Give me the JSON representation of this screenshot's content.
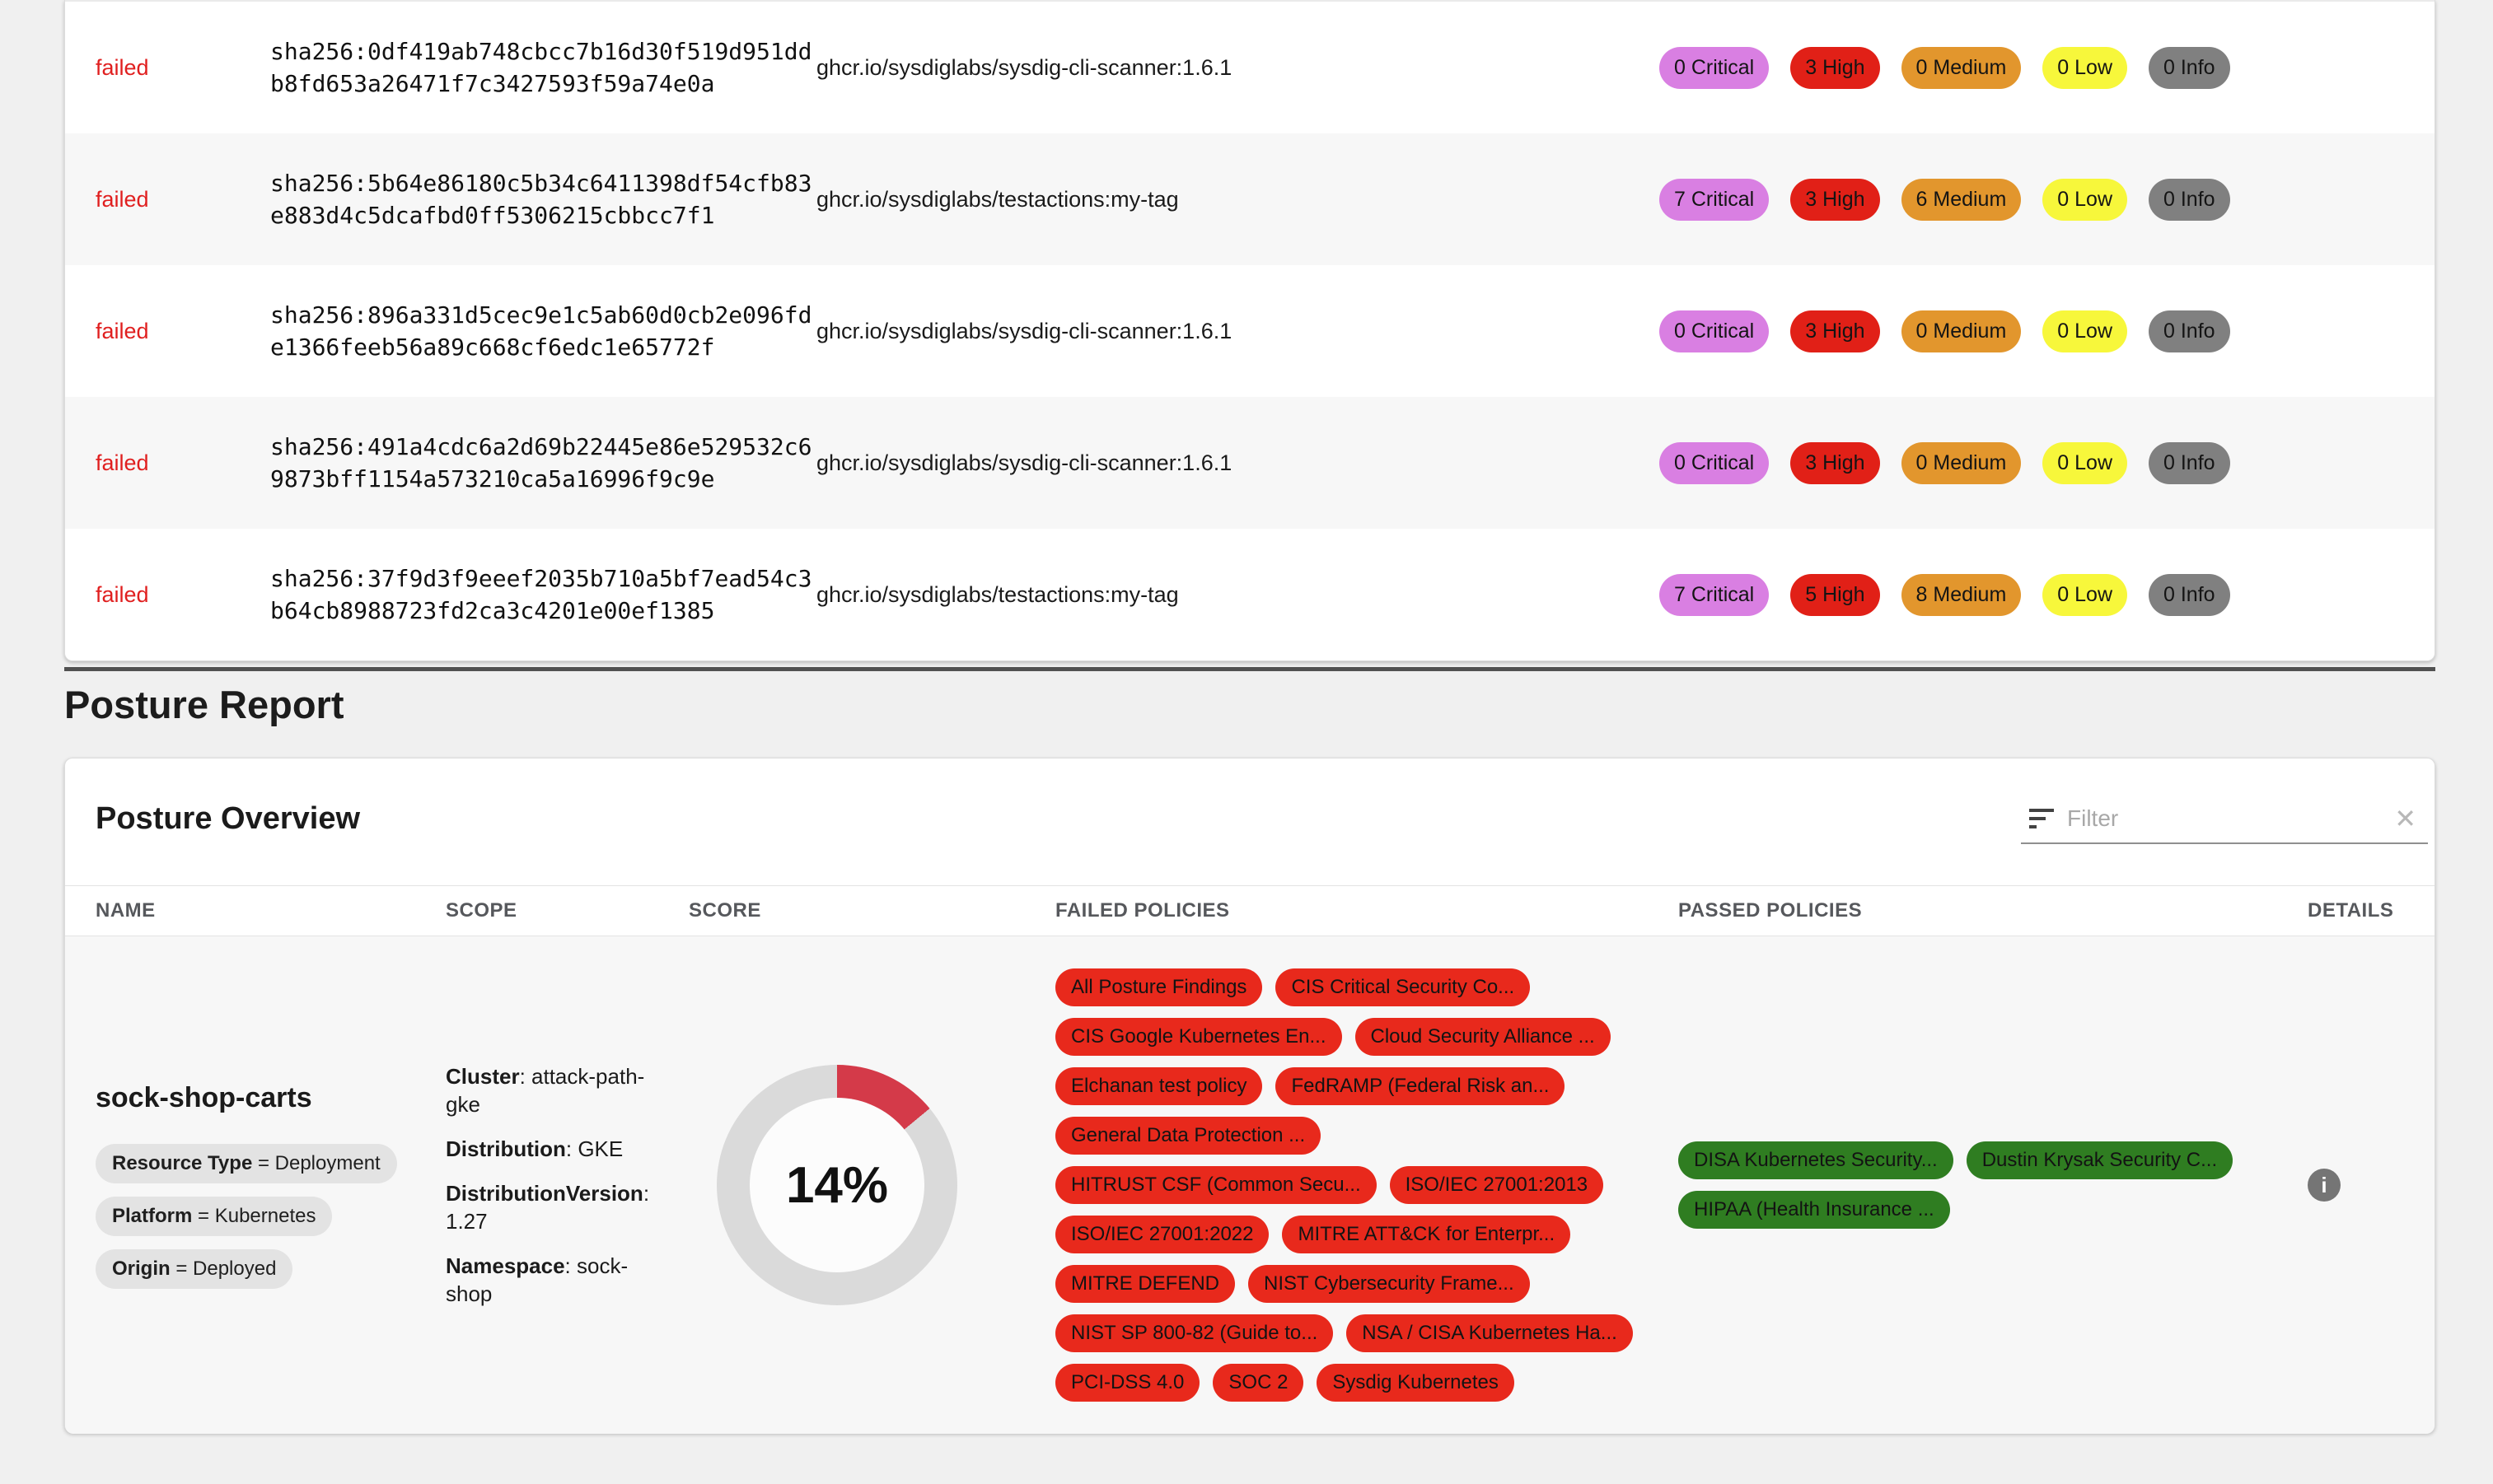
{
  "scan_table": {
    "status_color": "#e01f1f",
    "severity_levels": [
      {
        "key": "critical",
        "name": "Critical",
        "color": "#d97fe2"
      },
      {
        "key": "high",
        "name": "High",
        "color": "#e12017"
      },
      {
        "key": "medium",
        "name": "Medium",
        "color": "#e2962d"
      },
      {
        "key": "low",
        "name": "Low",
        "color": "#f7f73b"
      },
      {
        "key": "info",
        "name": "Info",
        "color": "#808080"
      }
    ],
    "rows": [
      {
        "status": "failed",
        "digest": "sha256:0df419ab748cbcc7b16d30f519d951dd\nb8fd653a26471f7c3427593f59a74e0a",
        "image": "ghcr.io/sysdiglabs/sysdig-cli-scanner:1.6.1",
        "counts": {
          "critical": 0,
          "high": 3,
          "medium": 0,
          "low": 0,
          "info": 0
        }
      },
      {
        "status": "failed",
        "digest": "sha256:5b64e86180c5b34c6411398df54cfb83\ne883d4c5dcafbd0ff5306215cbbcc7f1",
        "image": "ghcr.io/sysdiglabs/testactions:my-tag",
        "counts": {
          "critical": 7,
          "high": 3,
          "medium": 6,
          "low": 0,
          "info": 0
        }
      },
      {
        "status": "failed",
        "digest": "sha256:896a331d5cec9e1c5ab60d0cb2e096fd\ne1366feeb56a89c668cf6edc1e65772f",
        "image": "ghcr.io/sysdiglabs/sysdig-cli-scanner:1.6.1",
        "counts": {
          "critical": 0,
          "high": 3,
          "medium": 0,
          "low": 0,
          "info": 0
        }
      },
      {
        "status": "failed",
        "digest": "sha256:491a4cdc6a2d69b22445e86e529532c6\n9873bff1154a573210ca5a16996f9c9e",
        "image": "ghcr.io/sysdiglabs/sysdig-cli-scanner:1.6.1",
        "counts": {
          "critical": 0,
          "high": 3,
          "medium": 0,
          "low": 0,
          "info": 0
        }
      },
      {
        "status": "failed",
        "digest": "sha256:37f9d3f9eeef2035b710a5bf7ead54c3\nb64cb8988723fd2ca3c4201e00ef1385",
        "image": "ghcr.io/sysdiglabs/testactions:my-tag",
        "counts": {
          "critical": 7,
          "high": 5,
          "medium": 8,
          "low": 0,
          "info": 0
        }
      }
    ]
  },
  "posture_report": {
    "title": "Posture Report",
    "overview": {
      "title": "Posture Overview",
      "filter": {
        "placeholder": "Filter",
        "clear_icon": "✕"
      },
      "columns": [
        "NAME",
        "SCOPE",
        "SCORE",
        "FAILED POLICIES",
        "PASSED POLICIES",
        "DETAILS"
      ],
      "row": {
        "name": "sock-shop-carts",
        "tags": [
          {
            "key": "Resource Type",
            "value": "Deployment"
          },
          {
            "key": "Platform",
            "value": "Kubernetes"
          },
          {
            "key": "Origin",
            "value": "Deployed"
          }
        ],
        "scope": [
          {
            "label": "Cluster",
            "value": "attack-path-gke"
          },
          {
            "label": "Distribution",
            "value": "GKE"
          },
          {
            "label": "DistributionVersion",
            "value": "1.27"
          },
          {
            "label": "Namespace",
            "value": "sock-shop"
          }
        ],
        "score_percent": 14,
        "score_label": "14%",
        "failed_policies": [
          "All Posture Findings",
          "CIS Critical Security Co...",
          "CIS Google Kubernetes En...",
          "Cloud Security Alliance ...",
          "Elchanan test policy",
          "FedRAMP (Federal Risk an...",
          "General Data Protection ...",
          "HITRUST CSF (Common Secu...",
          "ISO/IEC 27001:2013",
          "ISO/IEC 27001:2022",
          "MITRE ATT&CK for Enterpr...",
          "MITRE DEFEND",
          "NIST Cybersecurity Frame...",
          "NIST SP 800-82 (Guide to...",
          "NSA / CISA Kubernetes Ha...",
          "PCI-DSS 4.0",
          "SOC 2",
          "Sysdig Kubernetes"
        ],
        "passed_policies": [
          "DISA Kubernetes Security...",
          "Dustin Krysak Security C...",
          "HIPAA (Health Insurance ..."
        ],
        "colors": {
          "failed_pill": "#e8291c",
          "passed_pill": "#2f7d21",
          "donut_arc": "#d43a49",
          "donut_track": "#dadada",
          "tag_bg": "#e3e3e3"
        }
      }
    }
  }
}
